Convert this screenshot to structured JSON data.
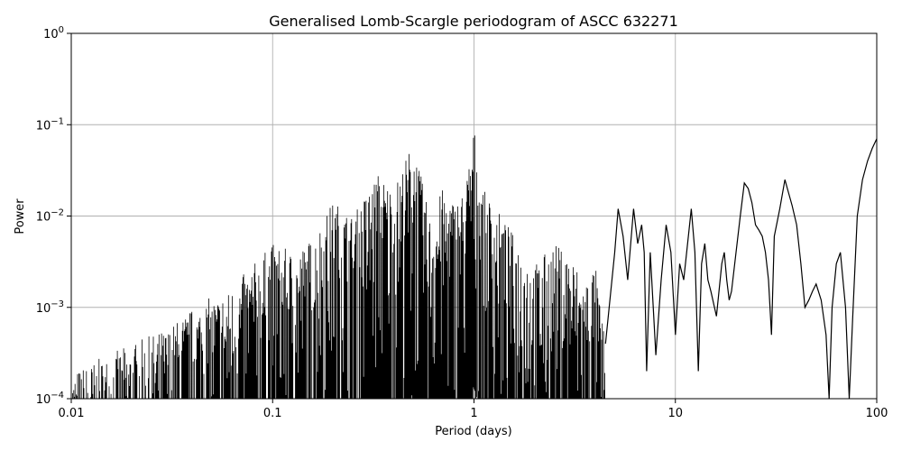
{
  "chart_data": {
    "type": "line",
    "title": "Generalised Lomb-Scargle periodogram of ASCC 632271",
    "xlabel": "Period (days)",
    "ylabel": "Power",
    "x_scale": "log",
    "y_scale": "log",
    "xlim": [
      0.01,
      100
    ],
    "ylim": [
      0.0001,
      1
    ],
    "grid": true,
    "line_color": "#000000",
    "grid_color": "#b0b0b0",
    "x_ticks": [
      {
        "value": 0.01,
        "label": "0.01"
      },
      {
        "value": 0.1,
        "label": "0.1"
      },
      {
        "value": 1,
        "label": "1"
      },
      {
        "value": 10,
        "label": "10"
      },
      {
        "value": 100,
        "label": "100"
      }
    ],
    "y_ticks": [
      {
        "value": 0.0001,
        "base": "10",
        "exp": "−4"
      },
      {
        "value": 0.001,
        "base": "10",
        "exp": "−3"
      },
      {
        "value": 0.01,
        "base": "10",
        "exp": "−2"
      },
      {
        "value": 0.1,
        "base": "10",
        "exp": "−1"
      },
      {
        "value": 1,
        "base": "10",
        "exp": "0"
      }
    ],
    "series": [
      {
        "x": [
          0.01,
          0.015,
          0.02,
          0.03,
          0.045,
          0.06,
          0.08,
          0.1,
          0.13,
          0.16,
          0.2,
          0.25,
          0.333,
          0.4,
          0.5,
          0.6,
          0.7,
          0.8,
          0.9,
          1.0,
          1.1,
          1.3,
          1.6,
          2.0,
          2.5,
          3.0,
          3.5,
          4.0,
          4.5,
          5.0,
          5.2,
          5.5,
          5.8,
          6.2,
          6.5,
          6.8,
          7.0,
          7.2,
          7.5,
          8.0,
          8.5,
          9.0,
          9.5,
          10.0,
          10.5,
          11.0,
          11.5,
          12.0,
          12.5,
          13.0,
          13.5,
          14.0,
          14.5,
          15.0,
          16.0,
          17.0,
          17.5,
          18.0,
          18.5,
          19.0,
          20.0,
          21.0,
          22.0,
          23.0,
          24.0,
          25.0,
          26.0,
          27.0,
          28.0,
          29.0,
          30.0,
          31.0,
          33.0,
          35.0,
          36.0,
          38.0,
          40.0,
          42.0,
          44.0,
          46.0,
          48.0,
          50.0,
          53.0,
          56.0,
          58.0,
          60.0,
          63.0,
          66.0,
          70.0,
          73.0,
          76.0,
          80.0,
          85.0,
          90.0,
          95.0,
          100.0
        ],
        "y": [
          0.0002,
          0.0003,
          0.0004,
          0.0006,
          0.0012,
          0.0015,
          0.003,
          0.005,
          0.004,
          0.006,
          0.015,
          0.01,
          0.03,
          0.02,
          0.07,
          0.01,
          0.02,
          0.015,
          0.02,
          0.095,
          0.02,
          0.012,
          0.006,
          0.003,
          0.005,
          0.004,
          0.002,
          0.003,
          0.0004,
          0.004,
          0.012,
          0.006,
          0.002,
          0.012,
          0.005,
          0.008,
          0.004,
          0.0002,
          0.004,
          0.0003,
          0.002,
          0.008,
          0.004,
          0.0005,
          0.003,
          0.002,
          0.005,
          0.012,
          0.004,
          0.0002,
          0.003,
          0.005,
          0.002,
          0.0015,
          0.0008,
          0.003,
          0.004,
          0.002,
          0.0012,
          0.0015,
          0.004,
          0.01,
          0.023,
          0.02,
          0.014,
          0.008,
          0.007,
          0.006,
          0.004,
          0.002,
          0.0005,
          0.006,
          0.012,
          0.025,
          0.02,
          0.013,
          0.008,
          0.003,
          0.001,
          0.0012,
          0.0015,
          0.0018,
          0.0012,
          0.0005,
          0.0001,
          0.001,
          0.003,
          0.004,
          0.001,
          0.0001,
          0.0008,
          0.01,
          0.025,
          0.04,
          0.055,
          0.07
        ]
      }
    ]
  }
}
